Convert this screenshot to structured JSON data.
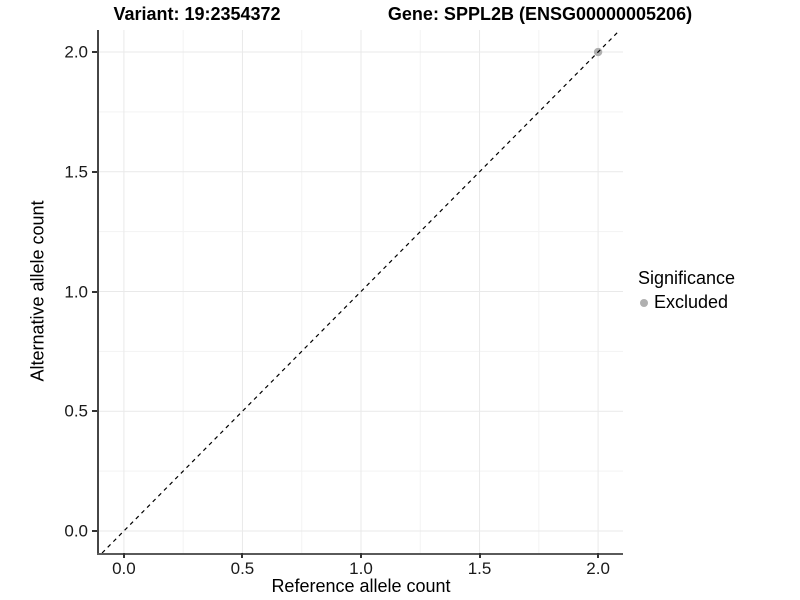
{
  "titles": {
    "variant": "Variant: 19:2354372",
    "gene": "Gene: SPPL2B (ENSG00000005206)"
  },
  "legend": {
    "title": "Significance",
    "items": [
      {
        "label": "Excluded",
        "color": "#b0b0b0"
      }
    ]
  },
  "chart_data": {
    "type": "scatter",
    "title": "Variant: 19:2354372 / Gene: SPPL2B (ENSG00000005206)",
    "xlabel": "Reference allele count",
    "ylabel": "Alternative allele count",
    "x_axis": {
      "ticks": [
        0.0,
        0.5,
        1.0,
        1.5,
        2.0
      ],
      "tick_labels": [
        "0.0",
        "0.5",
        "1.0",
        "1.5",
        "2.0"
      ],
      "minor_ticks": [
        0.25,
        0.75,
        1.25,
        1.75
      ],
      "domain": [
        -0.105,
        2.105
      ]
    },
    "y_axis": {
      "ticks": [
        0.0,
        0.5,
        1.0,
        1.5,
        2.0
      ],
      "tick_labels": [
        "0.0",
        "0.5",
        "1.0",
        "1.5",
        "2.0"
      ],
      "minor_ticks": [
        0.25,
        0.75,
        1.25,
        1.75
      ],
      "domain": [
        -0.092,
        2.092
      ]
    },
    "series": [
      {
        "name": "Excluded",
        "color": "#b0b0b0",
        "points": [
          {
            "x": 2.0,
            "y": 2.0
          }
        ]
      }
    ],
    "reference_line": {
      "kind": "abline",
      "slope": 1,
      "intercept": 0,
      "style": "dashed",
      "color": "#000000"
    },
    "grid": true,
    "grid_major_color": "#e9e9e9",
    "grid_minor_color": "#f3f3f3",
    "legend_position": "right",
    "legend_title": "Significance"
  }
}
